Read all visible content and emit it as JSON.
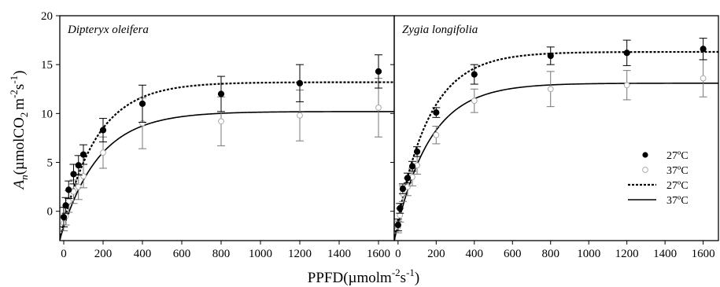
{
  "chart_data": [
    {
      "type": "scatter",
      "title": "Dipteryx oleifera",
      "xlim": [
        -20,
        1680
      ],
      "ylim": [
        -3,
        20
      ],
      "x_ticks": [
        0,
        200,
        400,
        600,
        800,
        1000,
        1200,
        1400,
        1600
      ],
      "y_ticks": [
        0,
        5,
        10,
        15,
        20
      ],
      "series": [
        {
          "name": "27ºC",
          "kind": "points",
          "marker": "filled-circle",
          "color": "#000000",
          "x": [
            0,
            10,
            25,
            50,
            75,
            100,
            200,
            400,
            800,
            1200,
            1600
          ],
          "y": [
            -0.6,
            0.6,
            2.2,
            3.8,
            4.7,
            5.8,
            8.3,
            11.0,
            12.0,
            13.1,
            14.3
          ],
          "err": [
            1.0,
            0.8,
            0.9,
            1.0,
            1.0,
            1.0,
            1.2,
            1.9,
            1.8,
            1.9,
            1.7
          ]
        },
        {
          "name": "37ºC",
          "kind": "points",
          "marker": "open-circle",
          "color": "#bbbbbb",
          "x": [
            0,
            10,
            25,
            50,
            75,
            100,
            200,
            400,
            800,
            1200,
            1600
          ],
          "y": [
            -1.2,
            -0.5,
            1.0,
            2.0,
            2.5,
            3.6,
            6.0,
            9.0,
            9.2,
            9.8,
            10.6
          ],
          "err": [
            0.8,
            0.9,
            1.1,
            1.2,
            1.3,
            1.2,
            1.6,
            2.6,
            2.5,
            2.6,
            3.0
          ]
        },
        {
          "name": "27ºC",
          "kind": "curve",
          "dash": "3,2",
          "color": "#000000",
          "model": {
            "amax": 13.2,
            "rd": -2.9,
            "k": 0.0056
          }
        },
        {
          "name": "37ºC",
          "kind": "curve",
          "dash": "",
          "color": "#000000",
          "model": {
            "amax": 10.2,
            "rd": -2.9,
            "k": 0.0052
          }
        }
      ]
    },
    {
      "type": "scatter",
      "title": "Zygia longifolia",
      "xlim": [
        -20,
        1680
      ],
      "ylim": [
        -3,
        20
      ],
      "x_ticks": [
        0,
        200,
        400,
        600,
        800,
        1000,
        1200,
        1400,
        1600
      ],
      "y_ticks": [
        0,
        5,
        10,
        15,
        20
      ],
      "series": [
        {
          "name": "27ºC",
          "kind": "points",
          "marker": "filled-circle",
          "color": "#000000",
          "x": [
            0,
            10,
            25,
            50,
            75,
            100,
            200,
            400,
            800,
            1200,
            1600
          ],
          "y": [
            -1.4,
            0.3,
            2.3,
            3.4,
            4.6,
            6.1,
            10.1,
            14.0,
            15.9,
            16.2,
            16.6
          ],
          "err": [
            0.6,
            0.5,
            0.5,
            0.5,
            0.5,
            0.5,
            0.5,
            1.0,
            0.9,
            1.3,
            1.1
          ]
        },
        {
          "name": "37ºC",
          "kind": "points",
          "marker": "open-circle",
          "color": "#bbbbbb",
          "x": [
            0,
            10,
            25,
            50,
            75,
            100,
            200,
            400,
            800,
            1200,
            1600
          ],
          "y": [
            -1.6,
            -0.4,
            1.8,
            2.5,
            3.5,
            4.7,
            7.8,
            11.3,
            12.5,
            12.9,
            13.6
          ],
          "err": [
            0.6,
            0.7,
            0.8,
            0.9,
            0.9,
            0.9,
            0.9,
            1.2,
            1.8,
            1.5,
            1.9
          ]
        },
        {
          "name": "27ºC",
          "kind": "curve",
          "dash": "3,2",
          "color": "#000000",
          "model": {
            "amax": 16.3,
            "rd": -3.0,
            "k": 0.0058
          }
        },
        {
          "name": "37ºC",
          "kind": "curve",
          "dash": "",
          "color": "#000000",
          "model": {
            "amax": 13.1,
            "rd": -3.0,
            "k": 0.0055
          }
        }
      ]
    }
  ],
  "axes": {
    "y_title_main": "A",
    "y_title_sub": "n",
    "y_title_units": "(µmolCO",
    "y_title_sub2": "2",
    "y_title_m": "m",
    "y_title_exp1": "-2",
    "y_title_s": "s",
    "y_title_exp2": "-1",
    "y_title_close": ")",
    "x_title_main": "PPFD(µmolm",
    "x_title_exp1": "-2",
    "x_title_s": "s",
    "x_title_exp2": "-1",
    "x_title_close": ")"
  },
  "legend": {
    "placement": "right",
    "entries": [
      {
        "label": "27ºC",
        "symbol": "filled-circle"
      },
      {
        "label": "37ºC",
        "symbol": "open-circle"
      },
      {
        "label": "27ºC",
        "symbol": "dotted-line"
      },
      {
        "label": "37ºC",
        "symbol": "solid-line"
      }
    ]
  }
}
